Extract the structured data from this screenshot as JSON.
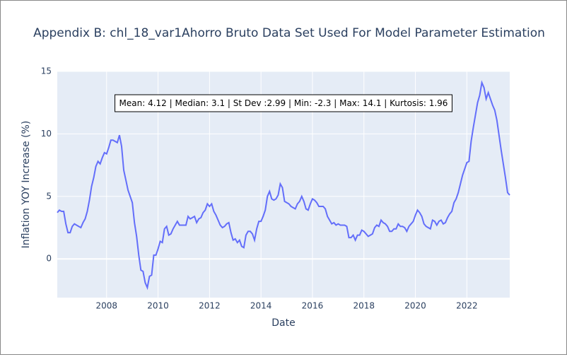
{
  "chart_data": {
    "type": "line",
    "title": "Appendix B: chl_18_var1Ahorro Bruto Data Set Used For Model Parameter Estimation",
    "xlabel": "Date",
    "ylabel": "Inflation YOY Increase (%)",
    "annotation": "Mean: 4.12 | Median: 3.1 | St Dev :2.99 | Min: -2.3 | Max: 14.1 | Kurtosis: 1.96",
    "xlim": [
      "2006-02",
      "2023-09"
    ],
    "xticks": [
      "2008",
      "2010",
      "2012",
      "2014",
      "2016",
      "2018",
      "2020",
      "2022"
    ],
    "ylim": [
      -3.1,
      15
    ],
    "yticks": [
      0,
      5,
      10,
      15
    ],
    "grid": true,
    "x": [
      "2006-02",
      "2006-03",
      "2006-04",
      "2006-05",
      "2006-06",
      "2006-07",
      "2006-08",
      "2006-09",
      "2006-10",
      "2006-11",
      "2006-12",
      "2007-01",
      "2007-02",
      "2007-03",
      "2007-04",
      "2007-05",
      "2007-06",
      "2007-07",
      "2007-08",
      "2007-09",
      "2007-10",
      "2007-11",
      "2007-12",
      "2008-01",
      "2008-02",
      "2008-03",
      "2008-04",
      "2008-05",
      "2008-06",
      "2008-07",
      "2008-08",
      "2008-09",
      "2008-10",
      "2008-11",
      "2008-12",
      "2009-01",
      "2009-02",
      "2009-03",
      "2009-04",
      "2009-05",
      "2009-06",
      "2009-07",
      "2009-08",
      "2009-09",
      "2009-10",
      "2009-11",
      "2009-12",
      "2010-01",
      "2010-02",
      "2010-03",
      "2010-04",
      "2010-05",
      "2010-06",
      "2010-07",
      "2010-08",
      "2010-09",
      "2010-10",
      "2010-11",
      "2010-12",
      "2011-01",
      "2011-02",
      "2011-03",
      "2011-04",
      "2011-05",
      "2011-06",
      "2011-07",
      "2011-08",
      "2011-09",
      "2011-10",
      "2011-11",
      "2011-12",
      "2012-01",
      "2012-02",
      "2012-03",
      "2012-04",
      "2012-05",
      "2012-06",
      "2012-07",
      "2012-08",
      "2012-09",
      "2012-10",
      "2012-11",
      "2012-12",
      "2013-01",
      "2013-02",
      "2013-03",
      "2013-04",
      "2013-05",
      "2013-06",
      "2013-07",
      "2013-08",
      "2013-09",
      "2013-10",
      "2013-11",
      "2013-12",
      "2014-01",
      "2014-02",
      "2014-03",
      "2014-04",
      "2014-05",
      "2014-06",
      "2014-07",
      "2014-08",
      "2014-09",
      "2014-10",
      "2014-11",
      "2014-12",
      "2015-01",
      "2015-02",
      "2015-03",
      "2015-04",
      "2015-05",
      "2015-06",
      "2015-07",
      "2015-08",
      "2015-09",
      "2015-10",
      "2015-11",
      "2015-12",
      "2016-01",
      "2016-02",
      "2016-03",
      "2016-04",
      "2016-05",
      "2016-06",
      "2016-07",
      "2016-08",
      "2016-09",
      "2016-10",
      "2016-11",
      "2016-12",
      "2017-01",
      "2017-02",
      "2017-03",
      "2017-04",
      "2017-05",
      "2017-06",
      "2017-07",
      "2017-08",
      "2017-09",
      "2017-10",
      "2017-11",
      "2017-12",
      "2018-01",
      "2018-02",
      "2018-03",
      "2018-04",
      "2018-05",
      "2018-06",
      "2018-07",
      "2018-08",
      "2018-09",
      "2018-10",
      "2018-11",
      "2018-12",
      "2019-01",
      "2019-02",
      "2019-03",
      "2019-04",
      "2019-05",
      "2019-06",
      "2019-07",
      "2019-08",
      "2019-09",
      "2019-10",
      "2019-11",
      "2019-12",
      "2020-01",
      "2020-02",
      "2020-03",
      "2020-04",
      "2020-05",
      "2020-06",
      "2020-07",
      "2020-08",
      "2020-09",
      "2020-10",
      "2020-11",
      "2020-12",
      "2021-01",
      "2021-02",
      "2021-03",
      "2021-04",
      "2021-05",
      "2021-06",
      "2021-07",
      "2021-08",
      "2021-09",
      "2021-10",
      "2021-11",
      "2021-12",
      "2022-01",
      "2022-02",
      "2022-03",
      "2022-04",
      "2022-05",
      "2022-06",
      "2022-07",
      "2022-08",
      "2022-09",
      "2022-10",
      "2022-11",
      "2022-12",
      "2023-01",
      "2023-02",
      "2023-03",
      "2023-04",
      "2023-05",
      "2023-06",
      "2023-07",
      "2023-08",
      "2023-09"
    ],
    "series": [
      {
        "name": "chl_18_var1Ahorro Bruto",
        "color": "#636efa",
        "values": [
          3.7,
          3.9,
          3.8,
          3.8,
          2.8,
          2.1,
          2.1,
          2.6,
          2.8,
          2.7,
          2.6,
          2.5,
          2.9,
          3.2,
          3.8,
          4.7,
          5.8,
          6.5,
          7.4,
          7.8,
          7.6,
          8.1,
          8.5,
          8.4,
          8.9,
          9.5,
          9.5,
          9.4,
          9.3,
          9.9,
          9.0,
          7.1,
          6.3,
          5.5,
          5.0,
          4.5,
          2.9,
          1.8,
          0.3,
          -0.9,
          -1.0,
          -1.9,
          -2.3,
          -1.4,
          -1.3,
          0.3,
          0.3,
          0.8,
          1.4,
          1.3,
          2.4,
          2.6,
          1.9,
          2.0,
          2.4,
          2.7,
          3.0,
          2.7,
          2.7,
          2.7,
          2.7,
          3.4,
          3.2,
          3.3,
          3.4,
          2.9,
          3.2,
          3.3,
          3.7,
          3.9,
          4.4,
          4.2,
          4.4,
          3.8,
          3.5,
          3.1,
          2.7,
          2.5,
          2.6,
          2.8,
          2.9,
          2.1,
          1.5,
          1.6,
          1.3,
          1.5,
          1.0,
          0.9,
          1.9,
          2.2,
          2.2,
          2.0,
          1.5,
          2.4,
          3.0,
          3.0,
          3.4,
          3.9,
          5.0,
          5.4,
          4.8,
          4.7,
          4.8,
          5.1,
          6.0,
          5.7,
          4.6,
          4.5,
          4.4,
          4.2,
          4.1,
          4.0,
          4.4,
          4.6,
          5.0,
          4.6,
          4.0,
          3.9,
          4.4,
          4.8,
          4.7,
          4.5,
          4.2,
          4.2,
          4.2,
          4.0,
          3.4,
          3.1,
          2.8,
          2.9,
          2.7,
          2.8,
          2.7,
          2.7,
          2.7,
          2.6,
          1.7,
          1.7,
          1.9,
          1.5,
          1.9,
          1.9,
          2.3,
          2.2,
          2.0,
          1.8,
          1.9,
          2.0,
          2.5,
          2.7,
          2.6,
          3.1,
          2.9,
          2.8,
          2.6,
          2.2,
          2.2,
          2.4,
          2.4,
          2.8,
          2.6,
          2.6,
          2.5,
          2.2,
          2.6,
          2.8,
          3.0,
          3.5,
          3.9,
          3.7,
          3.4,
          2.8,
          2.6,
          2.5,
          2.4,
          3.1,
          3.0,
          2.7,
          3.0,
          3.1,
          2.8,
          2.9,
          3.3,
          3.6,
          3.8,
          4.5,
          4.8,
          5.3,
          6.0,
          6.7,
          7.2,
          7.7,
          7.8,
          9.4,
          10.5,
          11.5,
          12.5,
          13.1,
          14.1,
          13.7,
          12.8,
          13.3,
          12.8,
          12.3,
          11.9,
          11.1,
          9.9,
          8.7,
          7.6,
          6.5,
          5.3,
          5.1
        ]
      }
    ]
  }
}
